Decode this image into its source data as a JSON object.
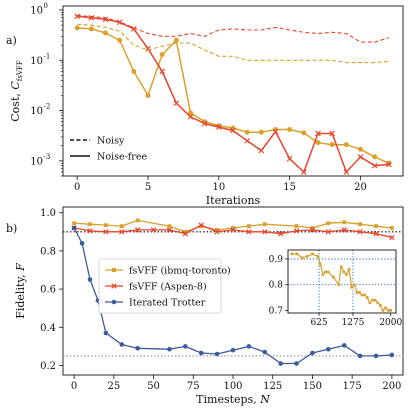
{
  "panel_labels": [
    "a)",
    "b)"
  ],
  "colors": {
    "orange": "#D9A02B",
    "red": "#E8452C",
    "blue": "#3C5A9C",
    "black": "#111111",
    "grey": "#888888",
    "insetgrid": "#2E6DB4"
  },
  "chart_data": [
    {
      "type": "line",
      "panel": "a)",
      "xlabel": "Iterations",
      "ylabel": "Cost, C_fsVFF",
      "ylabel_main": "Cost, ",
      "ylabel_sym": "C",
      "ylabel_sub": "fsVFF",
      "yscale": "log",
      "xlim": [
        -1,
        23
      ],
      "ylim": [
        0.0005,
        1.2
      ],
      "xticks": [
        0,
        5,
        10,
        15,
        20
      ],
      "xticklabels": [
        "0",
        "5",
        "10",
        "15",
        "20"
      ],
      "yticks": [
        0.001,
        0.01,
        0.1,
        1
      ],
      "ytick_exponents": [
        "-3",
        "-2",
        "-1",
        "0"
      ],
      "legend": {
        "position": "lower-left",
        "entries": [
          {
            "label": "Noisy",
            "style": "dashed"
          },
          {
            "label": "Noise-free",
            "style": "solid"
          }
        ]
      },
      "series": [
        {
          "color": "orange",
          "style": "solid",
          "marker": "circle",
          "x": [
            0,
            1,
            2,
            3,
            4,
            5,
            6,
            7,
            8,
            9,
            10,
            11,
            12,
            13,
            14,
            15,
            16,
            17,
            18,
            19,
            20,
            21,
            22
          ],
          "y": [
            0.44,
            0.42,
            0.35,
            0.25,
            0.06,
            0.02,
            0.13,
            0.25,
            0.009,
            0.006,
            0.005,
            0.0045,
            0.0037,
            0.0037,
            0.0042,
            0.0042,
            0.0036,
            0.0023,
            0.0021,
            0.0021,
            0.0017,
            0.0012,
            0.0009
          ]
        },
        {
          "color": "red",
          "style": "solid",
          "marker": "x",
          "x": [
            0,
            1,
            2,
            3,
            4,
            5,
            6,
            7,
            8,
            9,
            10,
            11,
            12,
            13,
            14,
            15,
            16,
            17,
            18,
            19,
            20,
            21,
            22
          ],
          "y": [
            0.75,
            0.7,
            0.65,
            0.57,
            0.42,
            0.17,
            0.06,
            0.014,
            0.0075,
            0.0055,
            0.0047,
            0.004,
            0.0025,
            0.0016,
            0.0038,
            0.0011,
            0.0006,
            0.0035,
            0.0035,
            0.0006,
            0.0012,
            0.0008,
            0.00085
          ]
        },
        {
          "color": "orange",
          "style": "dashed",
          "marker": "none",
          "x": [
            0,
            1,
            2,
            3,
            4,
            5,
            6,
            7,
            8,
            9,
            10,
            11,
            12,
            13,
            14,
            15,
            16,
            17,
            18,
            19,
            20,
            21,
            22
          ],
          "y": [
            0.52,
            0.5,
            0.45,
            0.38,
            0.2,
            0.16,
            0.19,
            0.22,
            0.22,
            0.16,
            0.12,
            0.12,
            0.1,
            0.1,
            0.1,
            0.1,
            0.1,
            0.1,
            0.1,
            0.09,
            0.09,
            0.09,
            0.095
          ]
        },
        {
          "color": "red",
          "style": "dashed",
          "marker": "none",
          "x": [
            0,
            1,
            2,
            3,
            4,
            5,
            6,
            7,
            8,
            9,
            10,
            11,
            12,
            13,
            14,
            15,
            16,
            17,
            18,
            19,
            20,
            21,
            22
          ],
          "y": [
            0.78,
            0.74,
            0.7,
            0.58,
            0.44,
            0.34,
            0.3,
            0.3,
            0.34,
            0.3,
            0.4,
            0.42,
            0.4,
            0.4,
            0.45,
            0.4,
            0.36,
            0.34,
            0.36,
            0.34,
            0.23,
            0.23,
            0.28
          ]
        }
      ]
    },
    {
      "type": "line",
      "panel": "b)",
      "xlabel": "Timesteps, N",
      "xlabel_main": "Timesteps, ",
      "xlabel_sym": "N",
      "ylabel": "Fidelity, F",
      "ylabel_main": "Fidelity, ",
      "ylabel_sym": "F",
      "xlim": [
        -7,
        207
      ],
      "ylim": [
        0.15,
        1.03
      ],
      "xticks": [
        0,
        25,
        50,
        75,
        100,
        125,
        150,
        175,
        200
      ],
      "xticklabels": [
        "0",
        "25",
        "50",
        "75",
        "100",
        "125",
        "150",
        "175",
        "200"
      ],
      "yticks": [
        0.2,
        0.4,
        0.6,
        0.8,
        1.0
      ],
      "yticklabels": [
        "0.2",
        "0.4",
        "0.6",
        "0.8",
        "1.0"
      ],
      "hlines": [
        {
          "y": 0.9,
          "color": "black",
          "style": "dotted"
        },
        {
          "y": 0.25,
          "color": "grey",
          "style": "dotted"
        }
      ],
      "legend": {
        "position": "center-left",
        "entries": [
          {
            "label": "fsVFF (ibmq-toronto)",
            "color": "orange",
            "marker": "square"
          },
          {
            "label": "fsVFF (Aspen-8)",
            "color": "red",
            "marker": "x"
          },
          {
            "label": "Iterated Trotter",
            "color": "blue",
            "marker": "circle"
          }
        ]
      },
      "series": [
        {
          "color": "orange",
          "marker": "square",
          "x": [
            0,
            10,
            20,
            30,
            40,
            60,
            70,
            80,
            90,
            100,
            110,
            120,
            140,
            150,
            160,
            170,
            180,
            190,
            200
          ],
          "y": [
            0.945,
            0.94,
            0.935,
            0.93,
            0.96,
            0.93,
            0.9,
            0.93,
            0.91,
            0.92,
            0.93,
            0.94,
            0.93,
            0.92,
            0.945,
            0.95,
            0.94,
            0.93,
            0.92
          ]
        },
        {
          "color": "red",
          "marker": "x",
          "x": [
            0,
            10,
            20,
            30,
            40,
            50,
            60,
            70,
            80,
            90,
            100,
            110,
            120,
            130,
            140,
            150,
            160,
            170,
            180,
            190,
            200
          ],
          "y": [
            0.92,
            0.905,
            0.9,
            0.9,
            0.91,
            0.91,
            0.91,
            0.89,
            0.935,
            0.9,
            0.91,
            0.9,
            0.9,
            0.89,
            0.905,
            0.91,
            0.9,
            0.91,
            0.9,
            0.89,
            0.87
          ]
        },
        {
          "color": "blue",
          "marker": "circle",
          "x": [
            0,
            5,
            10,
            15,
            20,
            30,
            40,
            60,
            70,
            80,
            90,
            100,
            110,
            120,
            130,
            140,
            150,
            160,
            170,
            180,
            190,
            200
          ],
          "y": [
            0.92,
            0.84,
            0.65,
            0.54,
            0.37,
            0.31,
            0.29,
            0.285,
            0.3,
            0.265,
            0.26,
            0.28,
            0.3,
            0.27,
            0.21,
            0.21,
            0.265,
            0.285,
            0.305,
            0.25,
            0.25,
            0.255
          ]
        }
      ],
      "inset": {
        "xlim": [
          30,
          2100
        ],
        "ylim": [
          0.69,
          0.935
        ],
        "xticks": [
          625,
          1275,
          2000
        ],
        "xticklabels": [
          "625",
          "1275",
          "2000"
        ],
        "yticks": [
          0.7,
          0.8,
          0.9
        ],
        "yticklabels": [
          "0.7",
          "0.8",
          "0.9"
        ],
        "vlines": [
          625,
          1275
        ],
        "hlines": [
          0.8,
          0.9
        ],
        "series": [
          {
            "color": "orange",
            "marker": "square",
            "x": [
              100,
              200,
              300,
              400,
              500,
              600,
              650,
              700,
              750,
              800,
              900,
              1000,
              1050,
              1100,
              1150,
              1200,
              1250,
              1300,
              1350,
              1400,
              1450,
              1500,
              1550,
              1600,
              1650,
              1700,
              1750,
              1800,
              1850,
              1900,
              1950,
              2000
            ],
            "y": [
              0.92,
              0.92,
              0.905,
              0.91,
              0.92,
              0.91,
              0.88,
              0.84,
              0.85,
              0.85,
              0.83,
              0.8,
              0.87,
              0.85,
              0.84,
              0.86,
              0.79,
              0.8,
              0.77,
              0.77,
              0.76,
              0.76,
              0.75,
              0.73,
              0.74,
              0.74,
              0.73,
              0.72,
              0.7,
              0.71,
              0.7,
              0.7
            ]
          }
        ]
      }
    }
  ]
}
